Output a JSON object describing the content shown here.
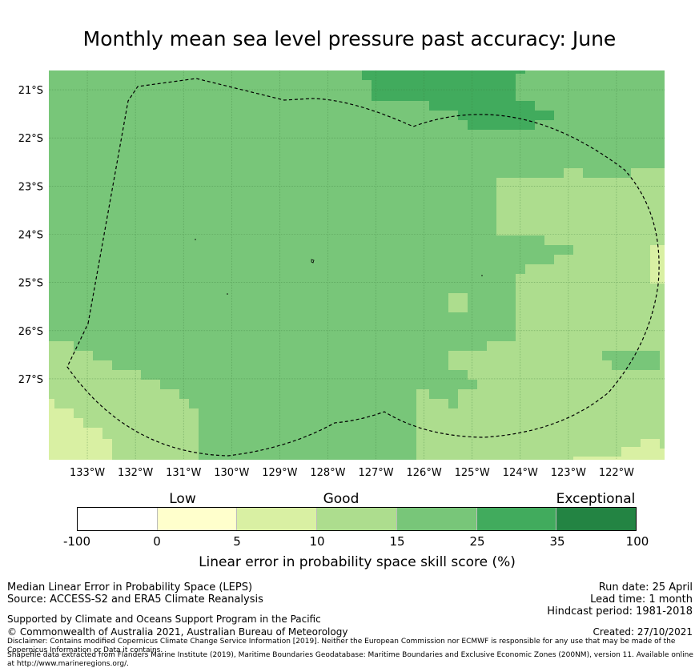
{
  "title": "Monthly mean sea level pressure past accuracy: June",
  "map": {
    "lat_labels": [
      "21°S",
      "22°S",
      "23°S",
      "24°S",
      "25°S",
      "26°S",
      "27°S"
    ],
    "lon_labels": [
      "133°W",
      "132°W",
      "131°W",
      "130°W",
      "129°W",
      "128°W",
      "127°W",
      "126°W",
      "125°W",
      "124°W",
      "123°W",
      "122°W"
    ],
    "extent": {
      "lon_west": -133.8,
      "lon_east": -121.0,
      "lat_north": -20.6,
      "lat_south": -28.68
    },
    "colors": {
      "lt0": "#ffffff",
      "c0_5": "#ffffcc",
      "c5_10": "#d9f0a3",
      "c10_15": "#addd8e",
      "c15_25": "#78c679",
      "c25_35": "#41ab5d",
      "c35_100": "#238443"
    }
  },
  "colorbar": {
    "categories": [
      {
        "label": "Low",
        "at": "0-5"
      },
      {
        "label": "Good",
        "at": "10-15"
      },
      {
        "label": "Exceptional",
        "at": "35-100"
      }
    ],
    "ticks": [
      "-100",
      "0",
      "5",
      "10",
      "15",
      "25",
      "35",
      "100"
    ],
    "colors": [
      "#ffffff",
      "#ffffcc",
      "#d9f0a3",
      "#addd8e",
      "#78c679",
      "#41ab5d",
      "#238443"
    ],
    "label": "Linear error in probability space skill score (%)"
  },
  "footer": {
    "line1": "Median Linear Error in Probability Space (LEPS)",
    "line2": "Source: ACCESS-S2 and ERA5 Climate Reanalysis",
    "line3": "Supported by Climate and Oceans Support Program in the Pacific",
    "line4": "© Commonwealth of Australia 2021, Australian Bureau of Meteorology",
    "run_date": "Run date: 25 April",
    "lead_time": "Lead time: 1 month",
    "hindcast": "Hindcast period: 1981-2018",
    "created": "Created: 27/10/2021",
    "disclaimer": "Disclaimer: Contains modified Copernicus Climate Change Service Information [2019]. Neither the European Commission nor ECMWF is responsible for any use that may be made of the Copernicus Information or Data it contains.",
    "shapefile": "Shapefile data extracted from Flanders Marine Institute (2019), Maritime Boundaries Geodatabase: Maritime Boundaries and Exclusive Economic Zones (200NM), version 11. Available online at http://www.marineregions.org/."
  }
}
